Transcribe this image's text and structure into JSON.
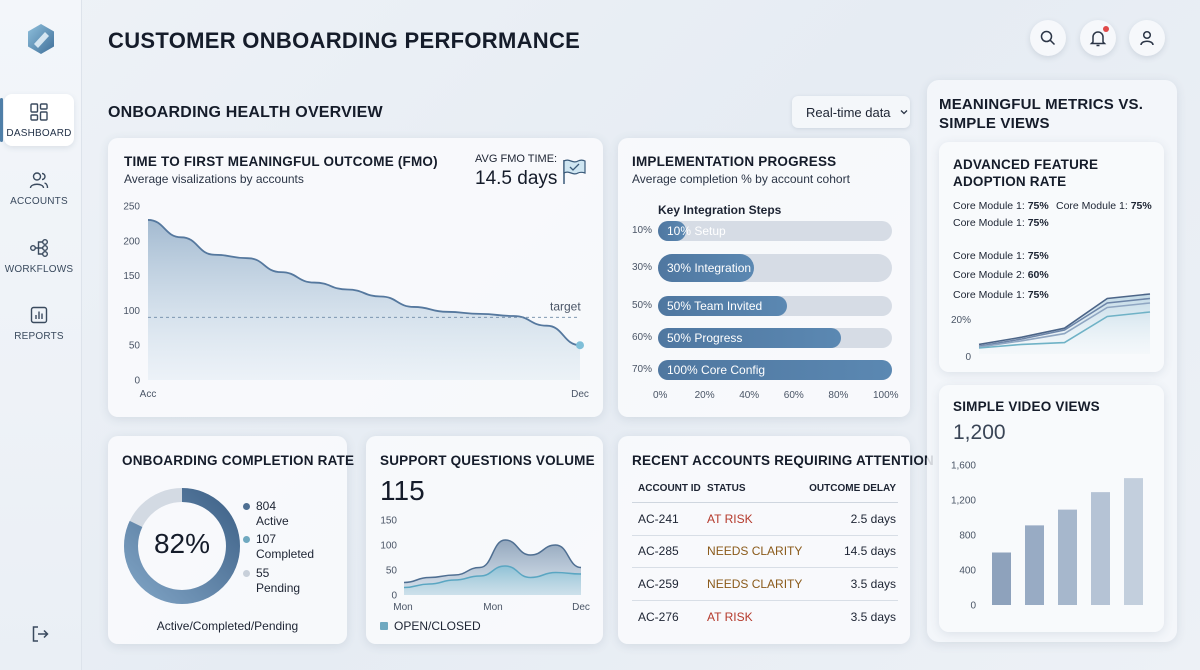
{
  "app": {
    "title": "CUSTOMER ONBOARDING PERFORMANCE"
  },
  "sidebar": {
    "items": [
      {
        "label": "DASHBOARD",
        "icon": "dashboard-icon",
        "active": true
      },
      {
        "label": "ACCOUNTS",
        "icon": "users-icon",
        "active": false
      },
      {
        "label": "WORKFLOWS",
        "icon": "workflow-icon",
        "active": false
      },
      {
        "label": "REPORTS",
        "icon": "report-icon",
        "active": false
      }
    ],
    "logout_icon": "logout-icon"
  },
  "header_icons": [
    "search-icon",
    "bell-icon",
    "user-icon"
  ],
  "section": {
    "title": "ONBOARDING HEALTH OVERVIEW",
    "dropdown": "Real-time data"
  },
  "fmo": {
    "title": "TIME TO FIRST MEANINGFUL OUTCOME (FMO)",
    "subtitle": "Average visalizations by accounts",
    "avg_label": "AVG FMO TIME:",
    "avg_value": "14.5 days",
    "target_label": "target",
    "chart_data": {
      "type": "area",
      "y_ticks": [
        "250",
        "200",
        "150",
        "100",
        "50",
        "0"
      ],
      "x_labels": [
        "Acc",
        "Dec"
      ],
      "ylim": [
        0,
        250
      ],
      "target": 90,
      "values": [
        230,
        205,
        180,
        175,
        155,
        140,
        130,
        120,
        105,
        98,
        95,
        92,
        78,
        50
      ]
    }
  },
  "impl": {
    "title": "IMPLEMENTATION PROGRESS",
    "subtitle": "Average completion % by account cohort",
    "steps_label": "Key Integration Steps",
    "chart_data": {
      "type": "bar",
      "rows": [
        {
          "pct": "10%",
          "label": "10% Setup",
          "value": 12
        },
        {
          "pct": "30%",
          "label": "30% Integration",
          "value": 41
        },
        {
          "pct": "50%",
          "label": "50% Team Invited",
          "value": 55
        },
        {
          "pct": "60%",
          "label": "50% Progress",
          "value": 78
        },
        {
          "pct": "70%",
          "label": "100% Core Config",
          "value": 100
        }
      ],
      "x_ticks": [
        "0%",
        "20%",
        "40%",
        "60%",
        "80%",
        "100%"
      ]
    }
  },
  "completion": {
    "title": "ONBOARDING COMPLETION RATE",
    "value": "82%",
    "chart_data": {
      "type": "pie",
      "percent": 82
    },
    "legend": [
      {
        "count": "804",
        "label": "Active",
        "color": "#4f6f92"
      },
      {
        "count": "107",
        "label": "Completed",
        "color": "#6fa9c0"
      },
      {
        "count": "55",
        "label": "Pending",
        "color": "#c8d0da"
      }
    ],
    "footer": "Active/Completed/Pending"
  },
  "support": {
    "title": "SUPPORT QUESTIONS VOLUME",
    "value": "115",
    "legend": "OPEN/CLOSED",
    "chart_data": {
      "type": "area",
      "y_ticks": [
        "150",
        "100",
        "50",
        "0"
      ],
      "x_labels": [
        "Mon",
        "Mon",
        "Dec"
      ],
      "ylim": [
        0,
        150
      ],
      "series": [
        {
          "values": [
            25,
            35,
            40,
            55,
            110,
            80,
            100,
            55
          ]
        },
        {
          "values": [
            15,
            22,
            30,
            38,
            58,
            35,
            45,
            42
          ]
        }
      ]
    }
  },
  "accounts": {
    "title": "RECENT ACCOUNTS REQUIRING ATTENTION",
    "columns": [
      "ACCOUNT ID",
      "STATUS",
      "OUTCOME DELAY"
    ],
    "rows": [
      {
        "id": "AC-241",
        "status": "AT RISK",
        "delay": "2.5 days"
      },
      {
        "id": "AC-285",
        "status": "NEEDS CLARITY",
        "delay": "14.5 days"
      },
      {
        "id": "AC-259",
        "status": "NEEDS CLARITY",
        "delay": "3.5 days"
      },
      {
        "id": "AC-276",
        "status": "AT RISK",
        "delay": "3.5 days"
      }
    ]
  },
  "panel": {
    "title_line1": "MEANINGFUL METRICS VS.",
    "title_line2": "SIMPLE VIEWS",
    "adoption": {
      "title_line1": "ADVANCED FEATURE",
      "title_line2": "ADOPTION RATE",
      "lines_top": [
        {
          "name": "Core Module 1:",
          "value": "75%"
        },
        {
          "name": "Core Module 1:",
          "value": "75%"
        },
        {
          "name": "Core Module 1:",
          "value": "75%"
        }
      ],
      "lines_bottom": [
        {
          "name": "Core Module 1:",
          "value": "75%"
        },
        {
          "name": "Core Module 2:",
          "value": "60%"
        },
        {
          "name": "Core Module 1:",
          "value": "75%"
        }
      ],
      "chart_data": {
        "type": "line",
        "y_ticks": [
          "20%",
          "0"
        ],
        "series": [
          {
            "values": [
              0.04,
              0.12,
              0.22,
              0.55,
              0.6
            ]
          },
          {
            "values": [
              0.02,
              0.1,
              0.2,
              0.5,
              0.55
            ]
          },
          {
            "values": [
              0.01,
              0.08,
              0.16,
              0.45,
              0.5
            ]
          },
          {
            "values": [
              0.0,
              0.04,
              0.06,
              0.35,
              0.4
            ]
          }
        ]
      }
    },
    "video": {
      "title": "SIMPLE VIDEO VIEWS",
      "value": "1,200",
      "chart_data": {
        "type": "bar",
        "y_ticks": [
          "1,600",
          "1,200",
          "800",
          "400",
          "0"
        ],
        "ylim": [
          0,
          1600
        ],
        "values": [
          600,
          910,
          1090,
          1290,
          1450
        ]
      }
    }
  }
}
